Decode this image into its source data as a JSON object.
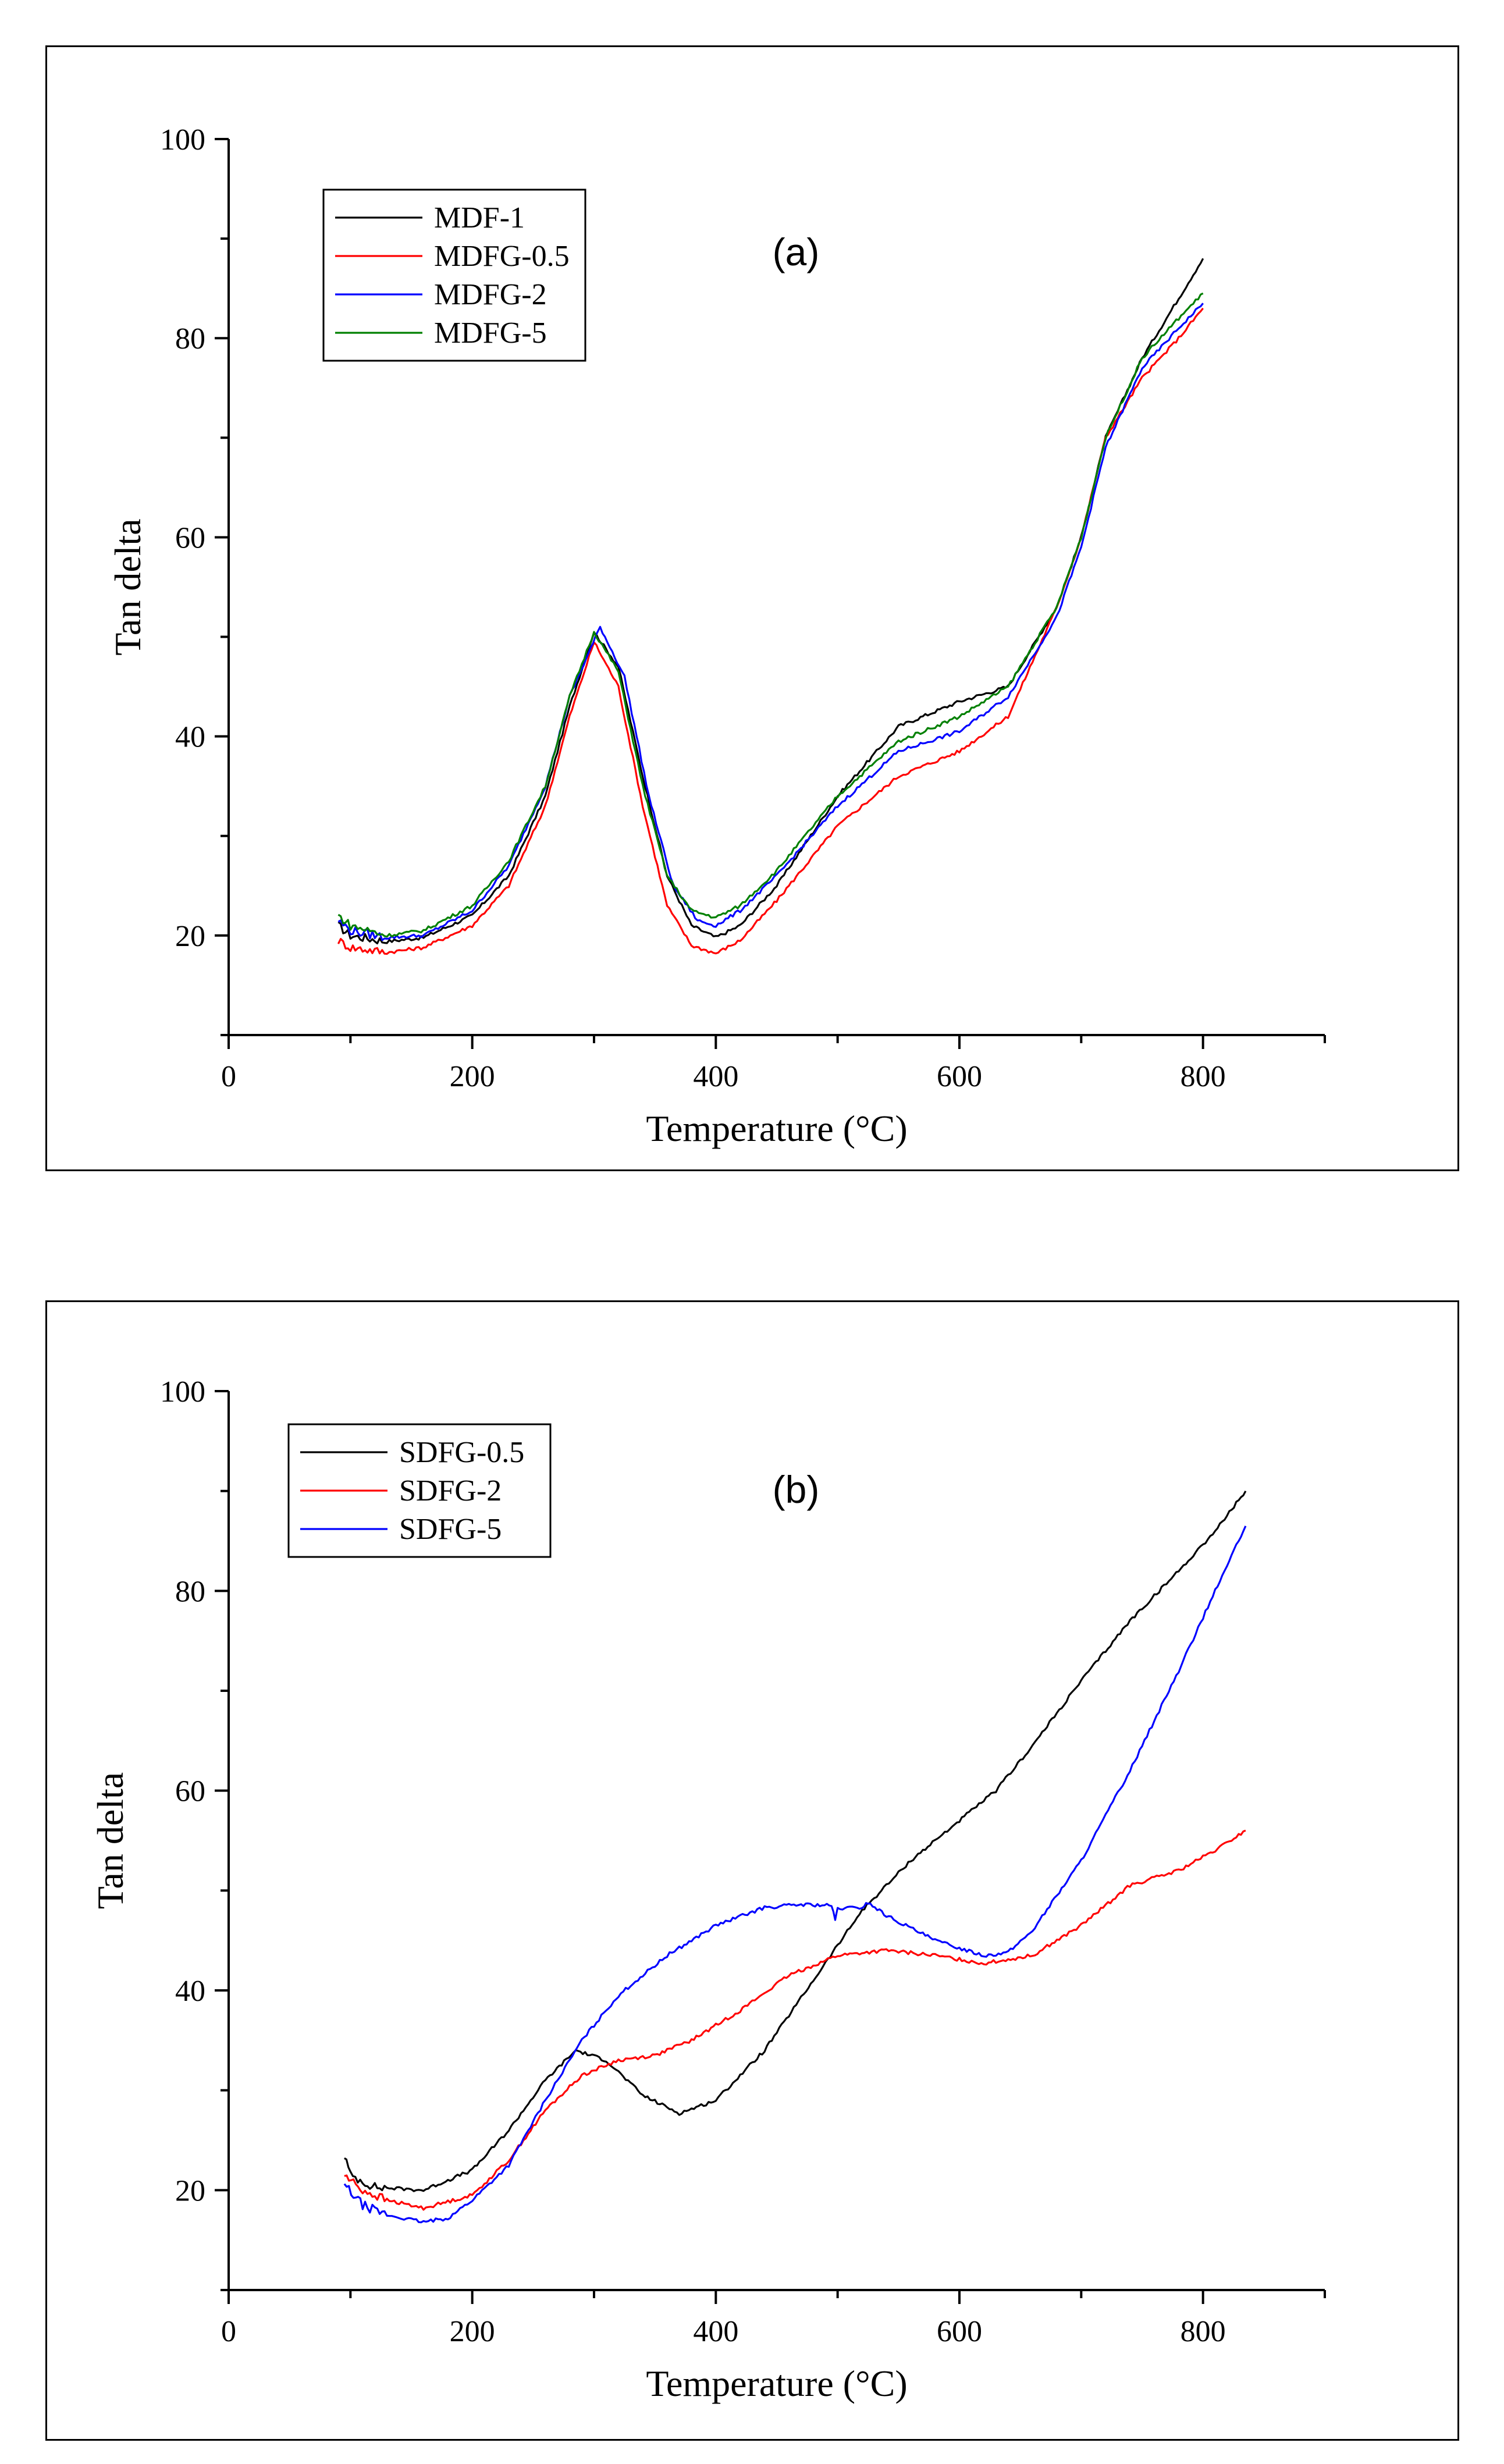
{
  "chart_data": [
    {
      "type": "line",
      "panel_label": "(a)",
      "xlabel": "Temperature (°C)",
      "ylabel": "Tan delta",
      "xlim": [
        0,
        900
      ],
      "ylim": [
        10,
        100
      ],
      "xticks": [
        0,
        200,
        400,
        600,
        800
      ],
      "yticks": [
        20,
        40,
        60,
        80,
        100
      ],
      "legend_position": "top-left",
      "series": [
        {
          "name": "MDF-1",
          "color": "#000000",
          "x": [
            90,
            100,
            130,
            160,
            200,
            230,
            260,
            280,
            300,
            320,
            340,
            360,
            380,
            400,
            420,
            450,
            500,
            550,
            600,
            640,
            680,
            700,
            720,
            750,
            780,
            800
          ],
          "y": [
            21,
            20,
            19.4,
            19.8,
            22,
            26,
            34,
            43,
            50.5,
            47,
            36,
            26,
            21,
            19.8,
            21,
            25,
            34,
            41,
            43.5,
            45,
            53,
            60,
            70,
            78,
            84,
            88
          ]
        },
        {
          "name": "MDFG-0.5",
          "color": "#ff0000",
          "x": [
            90,
            100,
            130,
            160,
            200,
            230,
            260,
            280,
            300,
            320,
            340,
            360,
            380,
            400,
            420,
            450,
            500,
            550,
            600,
            640,
            680,
            700,
            720,
            750,
            780,
            800
          ],
          "y": [
            19.5,
            18.8,
            18.3,
            18.8,
            21,
            25,
            33,
            42,
            49.5,
            45,
            33,
            23,
            19,
            18.2,
            19.5,
            23.5,
            31,
            36,
            38.5,
            42,
            53,
            60,
            70,
            76,
            80,
            83
          ]
        },
        {
          "name": "MDFG-2",
          "color": "#0000ff",
          "x": [
            90,
            100,
            130,
            160,
            200,
            230,
            260,
            280,
            305,
            325,
            345,
            365,
            385,
            400,
            420,
            450,
            500,
            550,
            600,
            640,
            680,
            700,
            720,
            750,
            780,
            800
          ],
          "y": [
            21.5,
            20.5,
            19.8,
            20,
            22.5,
            27,
            35,
            44,
            51,
            46,
            34,
            25,
            21.5,
            21,
            22.5,
            26,
            33,
            38.5,
            40.5,
            44,
            52,
            59,
            69,
            77,
            81,
            83.5
          ]
        },
        {
          "name": "MDFG-5",
          "color": "#008000",
          "x": [
            90,
            100,
            130,
            160,
            200,
            230,
            260,
            280,
            300,
            320,
            340,
            360,
            380,
            400,
            420,
            450,
            500,
            550,
            600,
            640,
            680,
            700,
            720,
            750,
            780,
            800
          ],
          "y": [
            22,
            21,
            20,
            20.5,
            23,
            27.5,
            35,
            44,
            50.5,
            46.5,
            35,
            26,
            22.5,
            21.8,
            23,
            26.5,
            34,
            39.5,
            42,
            45,
            53,
            60,
            70,
            78,
            82,
            84.5
          ]
        }
      ]
    },
    {
      "type": "line",
      "panel_label": "(b)",
      "xlabel": "Temperature (°C)",
      "ylabel": "Tan delta",
      "xlim": [
        0,
        900
      ],
      "ylim": [
        10,
        100
      ],
      "xticks": [
        0,
        200,
        400,
        600,
        800
      ],
      "yticks": [
        20,
        40,
        60,
        80,
        100
      ],
      "legend_position": "top-left",
      "series": [
        {
          "name": "SDFG-0.5",
          "color": "#000000",
          "x": [
            95,
            100,
            120,
            160,
            200,
            230,
            260,
            285,
            310,
            340,
            370,
            400,
            440,
            480,
            520,
            560,
            600,
            630,
            660,
            700,
            740,
            780,
            810,
            835
          ],
          "y": [
            23.5,
            21.5,
            20.3,
            20,
            22,
            26,
            31,
            34,
            33,
            29.5,
            27.7,
            29,
            34,
            41,
            48,
            53,
            57,
            60,
            64.5,
            71,
            77,
            82,
            86,
            90
          ]
        },
        {
          "name": "SDFG-2",
          "color": "#ff0000",
          "x": [
            95,
            110,
            130,
            160,
            200,
            230,
            260,
            290,
            320,
            350,
            380,
            420,
            460,
            500,
            540,
            580,
            620,
            660,
            700,
            740,
            780,
            810,
            835
          ],
          "y": [
            21.5,
            20,
            19,
            18.2,
            19.5,
            23,
            28,
            31.5,
            33,
            33.5,
            35,
            38,
            41.5,
            43.5,
            44,
            43.5,
            42.7,
            43.5,
            46.5,
            50.5,
            52,
            54,
            56
          ]
        },
        {
          "name": "SDFG-5",
          "color": "#0000ff",
          "x": [
            95,
            110,
            130,
            160,
            180,
            200,
            230,
            260,
            290,
            320,
            360,
            400,
            440,
            470,
            495,
            498,
            500,
            520,
            525,
            540,
            580,
            620,
            640,
            660,
            700,
            740,
            780,
            810,
            835
          ],
          "y": [
            20.5,
            18.5,
            17.5,
            16.8,
            17.2,
            19,
            22.5,
            29,
            35,
            39.5,
            43.5,
            46.5,
            48.3,
            48.6,
            48.5,
            47,
            48.2,
            48.3,
            48.8,
            47.5,
            45,
            43.5,
            43.8,
            46,
            53,
            62,
            72,
            80,
            86.5
          ]
        }
      ]
    }
  ]
}
